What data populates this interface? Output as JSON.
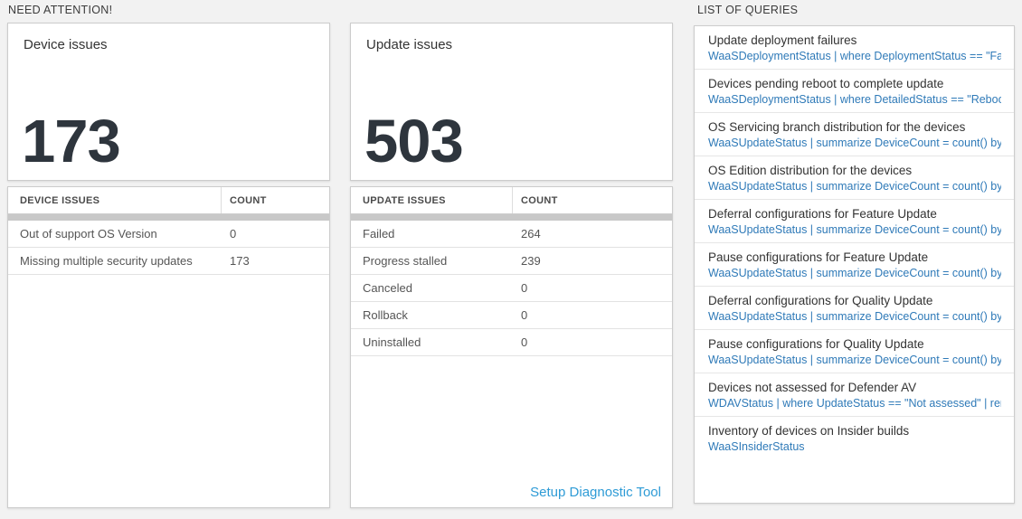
{
  "sections": {
    "need_attention": "NEED ATTENTION!",
    "list_of_queries": "LIST OF QUERIES"
  },
  "cards": [
    {
      "title": "Device issues",
      "big_number": "173",
      "table": {
        "headers": [
          "DEVICE ISSUES",
          "COUNT"
        ],
        "rows": [
          [
            "Out of support OS Version",
            "0"
          ],
          [
            "Missing multiple security updates",
            "173"
          ]
        ]
      }
    },
    {
      "title": "Update issues",
      "big_number": "503",
      "table": {
        "headers": [
          "UPDATE ISSUES",
          "COUNT"
        ],
        "rows": [
          [
            "Failed",
            "264"
          ],
          [
            "Progress stalled",
            "239"
          ],
          [
            "Canceled",
            "0"
          ],
          [
            "Rollback",
            "0"
          ],
          [
            "Uninstalled",
            "0"
          ]
        ]
      },
      "footer_link": "Setup Diagnostic Tool"
    }
  ],
  "queries": [
    {
      "title": "Update deployment failures",
      "query": "WaaSDeploymentStatus | where DeploymentStatus == \"Failed\" |..."
    },
    {
      "title": "Devices pending reboot to complete update",
      "query": "WaaSDeploymentStatus | where DetailedStatus == \"Reboot pend..."
    },
    {
      "title": "OS Servicing branch distribution for the devices",
      "query": "WaaSUpdateStatus | summarize DeviceCount = count() by OSSer..."
    },
    {
      "title": "OS Edition distribution for the devices",
      "query": "WaaSUpdateStatus | summarize DeviceCount = count() by OSEdit..."
    },
    {
      "title": "Deferral configurations for Feature Update",
      "query": "WaaSUpdateStatus | summarize DeviceCount = count() by Featur..."
    },
    {
      "title": "Pause configurations for Feature Update",
      "query": "WaaSUpdateStatus | summarize DeviceCount = count() by Featur..."
    },
    {
      "title": "Deferral configurations for Quality Update",
      "query": "WaaSUpdateStatus | summarize DeviceCount = count() by Qualit..."
    },
    {
      "title": "Pause configurations for Quality Update",
      "query": "WaaSUpdateStatus | summarize DeviceCount = count() by Qualit..."
    },
    {
      "title": "Devices not assessed for Defender AV",
      "query": "WDAVStatus | where UpdateStatus == \"Not assessed\" | render ta..."
    },
    {
      "title": "Inventory of devices on Insider builds",
      "query": "WaaSInsiderStatus"
    }
  ],
  "colors": {
    "page_bg": "#f2f2f2",
    "big_number": "#2e353d",
    "query_link_blue": "#2f7ab8",
    "diagnostic_link_blue": "#2e9bd6",
    "scrollbar_track": "#c8c8c8"
  }
}
